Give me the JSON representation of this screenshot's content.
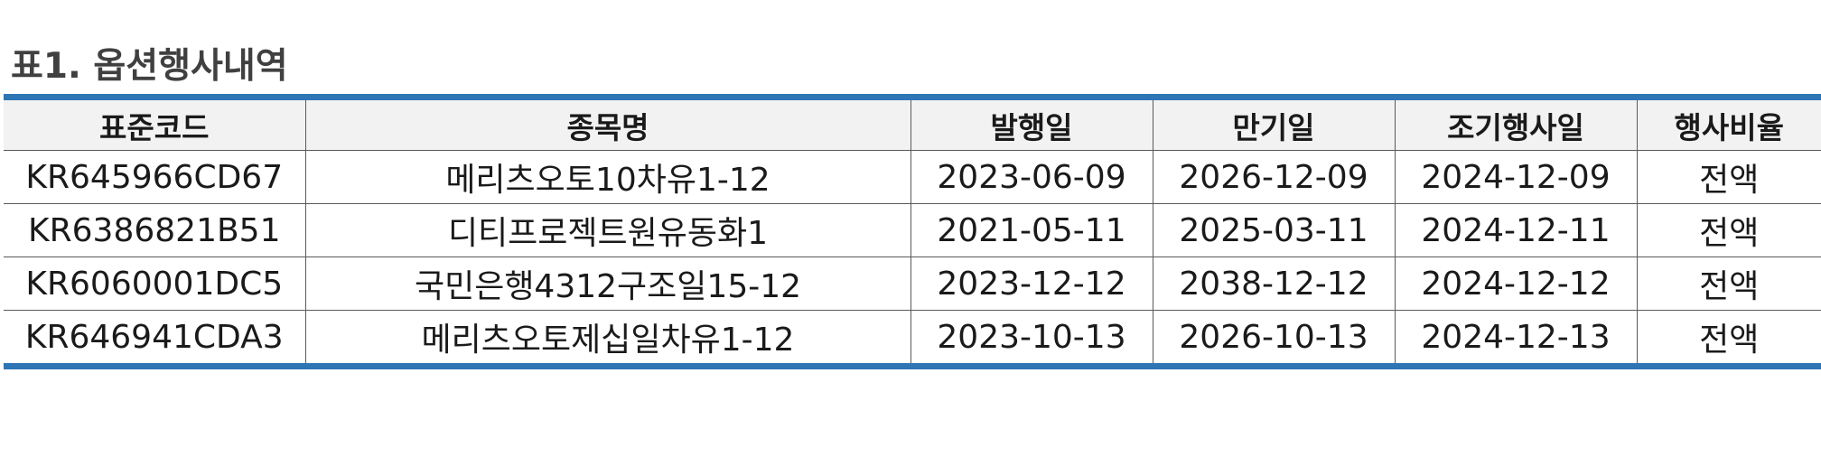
{
  "title": "표1. 옵션행사내역",
  "table": {
    "headers": [
      "표준코드",
      "종목명",
      "발행일",
      "만기일",
      "조기행사일",
      "행사비율"
    ],
    "rows": [
      [
        "KR645966CD67",
        "메리츠오토10차유1-12",
        "2023-06-09",
        "2026-12-09",
        "2024-12-09",
        "전액"
      ],
      [
        "KR6386821B51",
        "디티프로젝트원유동화1",
        "2021-05-11",
        "2025-03-11",
        "2024-12-11",
        "전액"
      ],
      [
        "KR6060001DC5",
        "국민은행4312구조일15-12",
        "2023-12-12",
        "2038-12-12",
        "2024-12-12",
        "전액"
      ],
      [
        "KR646941CDA3",
        "메리츠오토제십일차유1-12",
        "2023-10-13",
        "2026-10-13",
        "2024-12-13",
        "전액"
      ]
    ]
  },
  "colors": {
    "accent_rule": "#2e75b6",
    "header_bg": "#f2f2f2",
    "title_text": "#404040"
  }
}
